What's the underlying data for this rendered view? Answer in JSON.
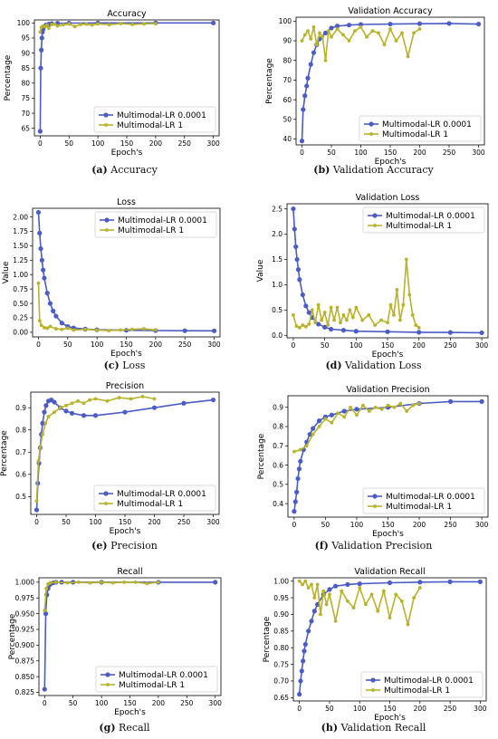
{
  "colors": {
    "blue": "#4b5cc4",
    "olive": "#b8b32a"
  },
  "legend": [
    "Multimodal-LR 0.0001",
    "Multimodal-LR 1"
  ],
  "chart_data": [
    {
      "id": "a",
      "type": "line",
      "title": "Accuracy",
      "xlabel": "Epoch's",
      "ylabel": "Percentage",
      "caption_letter": "(a)",
      "caption_text": "Accuracy",
      "xlim": [
        -10,
        310
      ],
      "ylim": [
        62.5,
        101
      ],
      "xticks": [
        0,
        50,
        100,
        150,
        200,
        250,
        300
      ],
      "yticks": [
        65,
        70,
        75,
        80,
        85,
        90,
        95,
        100
      ],
      "ytick_labels": [
        "65",
        "70",
        "75",
        "80",
        "85",
        "90",
        "95",
        "100"
      ],
      "legend_position": "lower-right",
      "series": [
        {
          "name": "Multimodal-LR 0.0001",
          "x": [
            0,
            1,
            2,
            3,
            4,
            5,
            7,
            10,
            15,
            20,
            30,
            50,
            100,
            200,
            300
          ],
          "y": [
            64,
            85,
            91,
            95,
            97,
            98,
            98.8,
            99.3,
            99.6,
            99.8,
            99.9,
            99.95,
            100,
            100,
            100
          ]
        },
        {
          "name": "Multimodal-LR 1",
          "x": [
            0,
            2,
            5,
            8,
            12,
            15,
            20,
            25,
            30,
            40,
            50,
            60,
            70,
            80,
            90,
            100,
            120,
            140,
            160,
            180,
            200
          ],
          "y": [
            97,
            98.5,
            99,
            98.8,
            99.3,
            98.2,
            99.5,
            99.6,
            99,
            99.4,
            99.7,
            98.8,
            99.5,
            99.6,
            99.3,
            99.7,
            99.4,
            99.8,
            99.5,
            99.7,
            99.8
          ]
        }
      ]
    },
    {
      "id": "b",
      "type": "line",
      "title": "Validation Accuracy",
      "xlabel": "Epoch's",
      "ylabel": "Percentage",
      "caption_letter": "(b)",
      "caption_text": "Validation Accuracy",
      "xlim": [
        -10,
        310
      ],
      "ylim": [
        37,
        102
      ],
      "xticks": [
        0,
        50,
        100,
        150,
        200,
        250,
        300
      ],
      "yticks": [
        40,
        50,
        60,
        70,
        80,
        90,
        100
      ],
      "ytick_labels": [
        "40",
        "50",
        "60",
        "70",
        "80",
        "90",
        "100"
      ],
      "legend_position": "lower-right",
      "series": [
        {
          "name": "Multimodal-LR 0.0001",
          "x": [
            0,
            2,
            5,
            8,
            10,
            15,
            20,
            25,
            30,
            40,
            50,
            60,
            80,
            100,
            150,
            200,
            250,
            300
          ],
          "y": [
            39,
            55,
            62,
            67,
            71,
            78,
            84,
            88,
            91,
            94,
            96.5,
            97.5,
            98,
            98.3,
            98.5,
            98.7,
            98.8,
            98.5
          ]
        },
        {
          "name": "Multimodal-LR 1",
          "x": [
            0,
            5,
            10,
            15,
            20,
            25,
            30,
            35,
            40,
            45,
            50,
            60,
            70,
            80,
            90,
            100,
            110,
            120,
            130,
            140,
            150,
            160,
            170,
            180,
            190,
            200
          ],
          "y": [
            90,
            93,
            95,
            91,
            97,
            88,
            94,
            92,
            80,
            95,
            92,
            96,
            93,
            90,
            95,
            97,
            92,
            95,
            94,
            88,
            96,
            90,
            94,
            82,
            94,
            96
          ]
        }
      ]
    },
    {
      "id": "c",
      "type": "line",
      "title": "Loss",
      "xlabel": "Epoch's",
      "ylabel": "Value",
      "caption_letter": "(c)",
      "caption_text": "Loss",
      "xlim": [
        -10,
        310
      ],
      "ylim": [
        -0.08,
        2.15
      ],
      "xticks": [
        0,
        50,
        100,
        150,
        200,
        250,
        300
      ],
      "yticks": [
        0.0,
        0.25,
        0.5,
        0.75,
        1.0,
        1.25,
        1.5,
        1.75,
        2.0
      ],
      "ytick_labels": [
        "0.00",
        "0.25",
        "0.50",
        "0.75",
        "1.00",
        "1.25",
        "1.50",
        "1.75",
        "2.00"
      ],
      "legend_position": "top-right",
      "series": [
        {
          "name": "Multimodal-LR 0.0001",
          "x": [
            0,
            2,
            4,
            6,
            8,
            10,
            15,
            20,
            25,
            30,
            40,
            50,
            60,
            80,
            100,
            150,
            200,
            250,
            300
          ],
          "y": [
            2.08,
            1.72,
            1.45,
            1.25,
            1.08,
            0.94,
            0.68,
            0.5,
            0.37,
            0.28,
            0.16,
            0.1,
            0.075,
            0.055,
            0.045,
            0.035,
            0.03,
            0.027,
            0.025
          ]
        },
        {
          "name": "Multimodal-LR 1",
          "x": [
            0,
            2,
            5,
            10,
            15,
            20,
            30,
            40,
            50,
            60,
            80,
            100,
            120,
            140,
            160,
            180,
            200
          ],
          "y": [
            0.85,
            0.2,
            0.12,
            0.08,
            0.07,
            0.1,
            0.06,
            0.05,
            0.07,
            0.04,
            0.05,
            0.04,
            0.03,
            0.04,
            0.05,
            0.06,
            0.04
          ]
        }
      ]
    },
    {
      "id": "d",
      "type": "line",
      "title": "Validation Loss",
      "xlabel": "Epoch's",
      "ylabel": "Value",
      "caption_letter": "(d)",
      "caption_text": "Validation Loss",
      "xlim": [
        -10,
        310
      ],
      "ylim": [
        -0.05,
        2.6
      ],
      "xticks": [
        0,
        50,
        100,
        150,
        200,
        250,
        300
      ],
      "yticks": [
        0.0,
        0.5,
        1.0,
        1.5,
        2.0,
        2.5
      ],
      "ytick_labels": [
        "0.0",
        "0.5",
        "1.0",
        "1.5",
        "2.0",
        "2.5"
      ],
      "legend_position": "top-right",
      "series": [
        {
          "name": "Multimodal-LR 0.0001",
          "x": [
            0,
            2,
            4,
            6,
            8,
            10,
            15,
            20,
            25,
            30,
            40,
            50,
            60,
            80,
            100,
            150,
            200,
            250,
            300
          ],
          "y": [
            2.5,
            2.1,
            1.75,
            1.5,
            1.3,
            1.1,
            0.8,
            0.58,
            0.45,
            0.35,
            0.22,
            0.16,
            0.12,
            0.1,
            0.08,
            0.07,
            0.06,
            0.055,
            0.05
          ]
        },
        {
          "name": "Multimodal-LR 1",
          "x": [
            0,
            5,
            10,
            15,
            20,
            25,
            30,
            35,
            40,
            45,
            50,
            55,
            60,
            65,
            70,
            75,
            80,
            85,
            90,
            95,
            100,
            110,
            120,
            130,
            140,
            150,
            155,
            160,
            165,
            170,
            175,
            180,
            185,
            190,
            195,
            200
          ],
          "y": [
            0.4,
            0.18,
            0.15,
            0.2,
            0.17,
            0.22,
            0.5,
            0.25,
            0.6,
            0.3,
            0.45,
            0.2,
            0.55,
            0.3,
            0.55,
            0.25,
            0.4,
            0.3,
            0.5,
            0.35,
            0.55,
            0.3,
            0.4,
            0.2,
            0.3,
            0.25,
            0.6,
            0.4,
            0.9,
            0.3,
            0.6,
            1.5,
            0.8,
            0.4,
            0.2,
            0.15
          ]
        }
      ]
    },
    {
      "id": "e",
      "type": "line",
      "title": "Precision",
      "xlabel": "Epoch's",
      "ylabel": "Percentage",
      "caption_letter": "(e)",
      "caption_text": "Precision",
      "xlim": [
        -10,
        310
      ],
      "ylim": [
        0.42,
        0.97
      ],
      "xticks": [
        0,
        50,
        100,
        150,
        200,
        250,
        300
      ],
      "yticks": [
        0.5,
        0.6,
        0.7,
        0.8,
        0.9
      ],
      "ytick_labels": [
        "0.5",
        "0.6",
        "0.7",
        "0.8",
        "0.9"
      ],
      "legend_position": "lower-right",
      "series": [
        {
          "name": "Multimodal-LR 0.0001",
          "x": [
            0,
            2,
            4,
            6,
            8,
            10,
            13,
            16,
            20,
            25,
            30,
            40,
            50,
            60,
            80,
            100,
            150,
            200,
            250,
            300
          ],
          "y": [
            0.44,
            0.56,
            0.65,
            0.72,
            0.78,
            0.83,
            0.88,
            0.91,
            0.93,
            0.935,
            0.925,
            0.9,
            0.885,
            0.875,
            0.865,
            0.865,
            0.88,
            0.9,
            0.92,
            0.935
          ]
        },
        {
          "name": "Multimodal-LR 1",
          "x": [
            0,
            3,
            6,
            10,
            15,
            20,
            30,
            40,
            50,
            60,
            70,
            80,
            90,
            100,
            120,
            140,
            160,
            180,
            200
          ],
          "y": [
            0.48,
            0.66,
            0.72,
            0.78,
            0.83,
            0.86,
            0.88,
            0.9,
            0.91,
            0.92,
            0.93,
            0.92,
            0.935,
            0.94,
            0.93,
            0.945,
            0.94,
            0.95,
            0.94
          ]
        }
      ]
    },
    {
      "id": "f",
      "type": "line",
      "title": "Validation Precision",
      "xlabel": "Epoch's",
      "ylabel": "Percentage",
      "caption_letter": "(f)",
      "caption_text": "Validation Precision",
      "xlim": [
        -10,
        310
      ],
      "ylim": [
        0.33,
        0.96
      ],
      "xticks": [
        0,
        50,
        100,
        150,
        200,
        250,
        300
      ],
      "yticks": [
        0.4,
        0.5,
        0.6,
        0.7,
        0.8,
        0.9
      ],
      "ytick_labels": [
        "0.4",
        "0.5",
        "0.6",
        "0.7",
        "0.8",
        "0.9"
      ],
      "legend_position": "lower-right",
      "series": [
        {
          "name": "Multimodal-LR 0.0001",
          "x": [
            0,
            2,
            4,
            6,
            8,
            10,
            15,
            20,
            25,
            30,
            40,
            50,
            60,
            80,
            100,
            150,
            200,
            250,
            300
          ],
          "y": [
            0.36,
            0.41,
            0.46,
            0.53,
            0.58,
            0.62,
            0.68,
            0.72,
            0.76,
            0.79,
            0.83,
            0.85,
            0.86,
            0.88,
            0.89,
            0.9,
            0.92,
            0.93,
            0.93
          ]
        },
        {
          "name": "Multimodal-LR 1",
          "x": [
            0,
            10,
            20,
            30,
            40,
            50,
            60,
            70,
            80,
            90,
            100,
            110,
            120,
            130,
            140,
            150,
            160,
            170,
            180,
            190,
            200
          ],
          "y": [
            0.67,
            0.68,
            0.7,
            0.76,
            0.8,
            0.84,
            0.82,
            0.87,
            0.85,
            0.9,
            0.86,
            0.91,
            0.88,
            0.9,
            0.89,
            0.91,
            0.9,
            0.92,
            0.88,
            0.91,
            0.92
          ]
        }
      ]
    },
    {
      "id": "g",
      "type": "line",
      "title": "Recall",
      "xlabel": "Epoch's",
      "ylabel": "Percentage",
      "caption_letter": "(g)",
      "caption_text": "Recall",
      "xlim": [
        -10,
        310
      ],
      "ylim": [
        0.82,
        1.007
      ],
      "xticks": [
        0,
        50,
        100,
        150,
        200,
        250,
        300
      ],
      "yticks": [
        0.825,
        0.85,
        0.875,
        0.9,
        0.925,
        0.95,
        0.975,
        1.0
      ],
      "ytick_labels": [
        "0.825",
        "0.850",
        "0.875",
        "0.900",
        "0.925",
        "0.950",
        "0.975",
        "1.000"
      ],
      "legend_position": "lower-right",
      "series": [
        {
          "name": "Multimodal-LR 0.0001",
          "x": [
            0,
            2,
            4,
            6,
            8,
            10,
            15,
            20,
            30,
            50,
            100,
            200,
            300
          ],
          "y": [
            0.83,
            0.95,
            0.98,
            0.99,
            0.995,
            0.997,
            0.999,
            1.0,
            1.0,
            1.0,
            1.0,
            1.0,
            1.0
          ]
        },
        {
          "name": "Multimodal-LR 1",
          "x": [
            0,
            3,
            6,
            10,
            20,
            40,
            60,
            80,
            100,
            120,
            140,
            160,
            180,
            200
          ],
          "y": [
            0.955,
            0.99,
            0.997,
            0.999,
            1.0,
            0.999,
            1.0,
            0.999,
            1.0,
            0.999,
            1.0,
            1.0,
            0.998,
            1.0
          ]
        }
      ]
    },
    {
      "id": "h",
      "type": "line",
      "title": "Validation Recall",
      "xlabel": "Epoch's",
      "ylabel": "Percentage",
      "caption_letter": "(h)",
      "caption_text": "Validation Recall",
      "xlim": [
        -10,
        310
      ],
      "ylim": [
        0.64,
        1.01
      ],
      "xticks": [
        0,
        50,
        100,
        150,
        200,
        250,
        300
      ],
      "yticks": [
        0.65,
        0.7,
        0.75,
        0.8,
        0.85,
        0.9,
        0.95,
        1.0
      ],
      "ytick_labels": [
        "0.65",
        "0.70",
        "0.75",
        "0.80",
        "0.85",
        "0.90",
        "0.95",
        "1.00"
      ],
      "legend_position": "lower-right",
      "series": [
        {
          "name": "Multimodal-LR 0.0001",
          "x": [
            0,
            2,
            4,
            6,
            8,
            10,
            15,
            20,
            25,
            30,
            40,
            50,
            60,
            80,
            100,
            150,
            200,
            250,
            300
          ],
          "y": [
            0.66,
            0.7,
            0.73,
            0.76,
            0.79,
            0.81,
            0.85,
            0.88,
            0.91,
            0.93,
            0.96,
            0.975,
            0.985,
            0.99,
            0.992,
            0.995,
            0.997,
            0.998,
            0.998
          ]
        },
        {
          "name": "Multimodal-LR 1",
          "x": [
            0,
            5,
            10,
            15,
            20,
            25,
            30,
            35,
            40,
            45,
            50,
            60,
            70,
            80,
            90,
            100,
            110,
            120,
            130,
            140,
            150,
            160,
            170,
            180,
            190,
            200
          ],
          "y": [
            1.0,
            0.99,
            1.0,
            0.98,
            0.99,
            0.95,
            0.99,
            0.9,
            0.97,
            0.93,
            0.96,
            0.88,
            0.97,
            0.94,
            0.92,
            0.98,
            0.93,
            0.96,
            0.91,
            0.97,
            0.89,
            0.96,
            0.94,
            0.87,
            0.95,
            0.98
          ]
        }
      ]
    }
  ]
}
